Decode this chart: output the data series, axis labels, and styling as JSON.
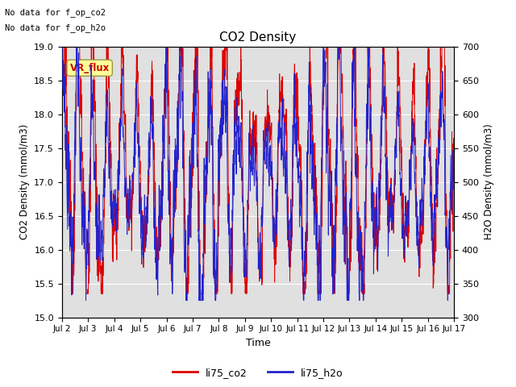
{
  "title": "CO2 Density",
  "xlabel": "Time",
  "ylabel_left": "CO2 Density (mmol/m3)",
  "ylabel_right": "H2O Density (mmol/m3)",
  "ylim_left": [
    15.0,
    19.0
  ],
  "ylim_right": [
    300,
    700
  ],
  "text_no_data": [
    "No data for f_op_co2",
    "No data for f_op_h2o"
  ],
  "legend_label_co2": "li75_co2",
  "legend_label_h2o": "li75_h2o",
  "vr_flux_label": "VR_flux",
  "background_color": "#e0e0e0",
  "line_color_co2": "#dd0000",
  "line_color_h2o": "#2222cc",
  "xtick_labels": [
    "Jul 2",
    "Jul 3",
    "Jul 4",
    "Jul 5",
    "Jul 6",
    "Jul 7",
    "Jul 8",
    "Jul 9",
    "Jul 10",
    "Jul 11",
    "Jul 12",
    "Jul 13",
    "Jul 14",
    "Jul 15",
    "Jul 16",
    "Jul 17"
  ],
  "yticks_left": [
    15.0,
    15.5,
    16.0,
    16.5,
    17.0,
    17.5,
    18.0,
    18.5,
    19.0
  ],
  "yticks_right": [
    300,
    350,
    400,
    450,
    500,
    550,
    600,
    650,
    700
  ],
  "figwidth": 6.4,
  "figheight": 4.8,
  "dpi": 100
}
